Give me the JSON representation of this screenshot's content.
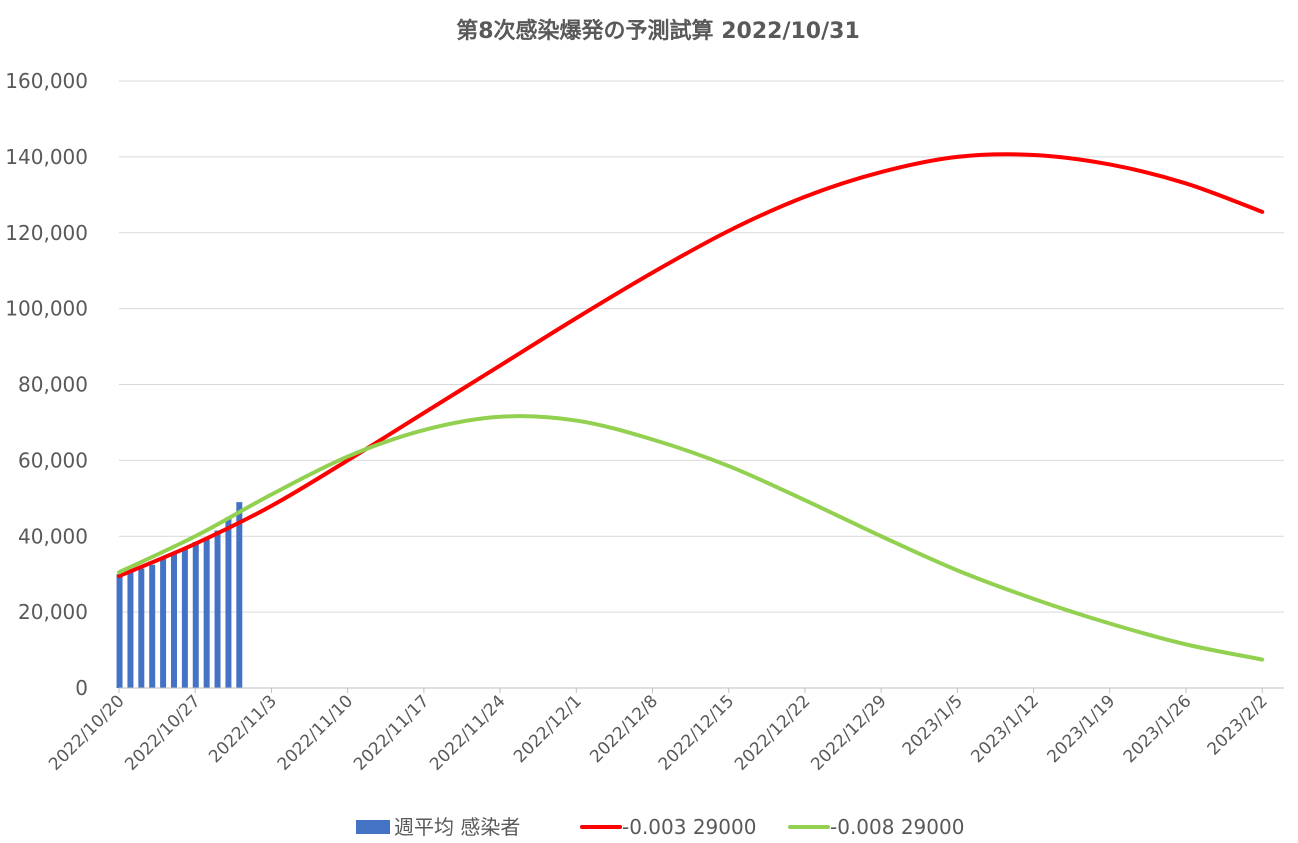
{
  "chart_data": {
    "type": "line",
    "title": "第8次感染爆発の予測試算  2022/10/31",
    "xlabel": "",
    "ylabel": "",
    "ylim": [
      0,
      160000
    ],
    "yticks": [
      0,
      20000,
      40000,
      60000,
      80000,
      100000,
      120000,
      140000,
      160000
    ],
    "ytick_labels": [
      "0",
      "20,000",
      "40,000",
      "60,000",
      "80,000",
      "100,000",
      "120,000",
      "140,000",
      "160,000"
    ],
    "x_start": "2022/10/20",
    "x_end": "2023/2/4",
    "xtick_labels": [
      "2022/10/20",
      "2022/10/27",
      "2022/11/3",
      "2022/11/10",
      "2022/11/17",
      "2022/11/24",
      "2022/12/1",
      "2022/12/8",
      "2022/12/15",
      "2022/12/22",
      "2022/12/29",
      "2023/1/5",
      "2023/1/12",
      "2023/1/19",
      "2023/1/26",
      "2023/2/2"
    ],
    "grid": true,
    "legend_position": "bottom",
    "series": [
      {
        "name": "週平均 感染者",
        "kind": "bar",
        "color": "#4472c4",
        "dates": [
          "2022/10/20",
          "2022/10/21",
          "2022/10/22",
          "2022/10/23",
          "2022/10/24",
          "2022/10/25",
          "2022/10/26",
          "2022/10/27",
          "2022/10/28",
          "2022/10/29",
          "2022/10/30",
          "2022/10/31"
        ],
        "values": [
          30000,
          31000,
          31500,
          32500,
          34000,
          35500,
          37000,
          38500,
          39500,
          41500,
          45000,
          49000
        ]
      },
      {
        "name": "-0.003 29000",
        "kind": "line",
        "color": "#ff0000",
        "dates": [
          "2022/10/20",
          "2022/10/27",
          "2022/11/3",
          "2022/11/10",
          "2022/11/17",
          "2022/11/24",
          "2022/12/1",
          "2022/12/8",
          "2022/12/15",
          "2022/12/22",
          "2022/12/29",
          "2023/1/5",
          "2023/1/12",
          "2023/1/19",
          "2023/1/26",
          "2023/2/2"
        ],
        "values": [
          29500,
          38000,
          48000,
          60000,
          72500,
          85000,
          97500,
          109500,
          120500,
          129500,
          136000,
          140000,
          140500,
          138000,
          133000,
          125500
        ]
      },
      {
        "name": "-0.008 29000",
        "kind": "line",
        "color": "#92d050",
        "dates": [
          "2022/10/20",
          "2022/10/27",
          "2022/11/3",
          "2022/11/10",
          "2022/11/17",
          "2022/11/24",
          "2022/12/1",
          "2022/12/8",
          "2022/12/15",
          "2022/12/22",
          "2022/12/29",
          "2023/1/5",
          "2023/1/12",
          "2023/1/19",
          "2023/1/26",
          "2023/2/2"
        ],
        "values": [
          30500,
          40000,
          51000,
          61000,
          68000,
          71500,
          70500,
          65500,
          58500,
          49500,
          40000,
          31000,
          23500,
          17000,
          11500,
          7500
        ]
      }
    ]
  }
}
